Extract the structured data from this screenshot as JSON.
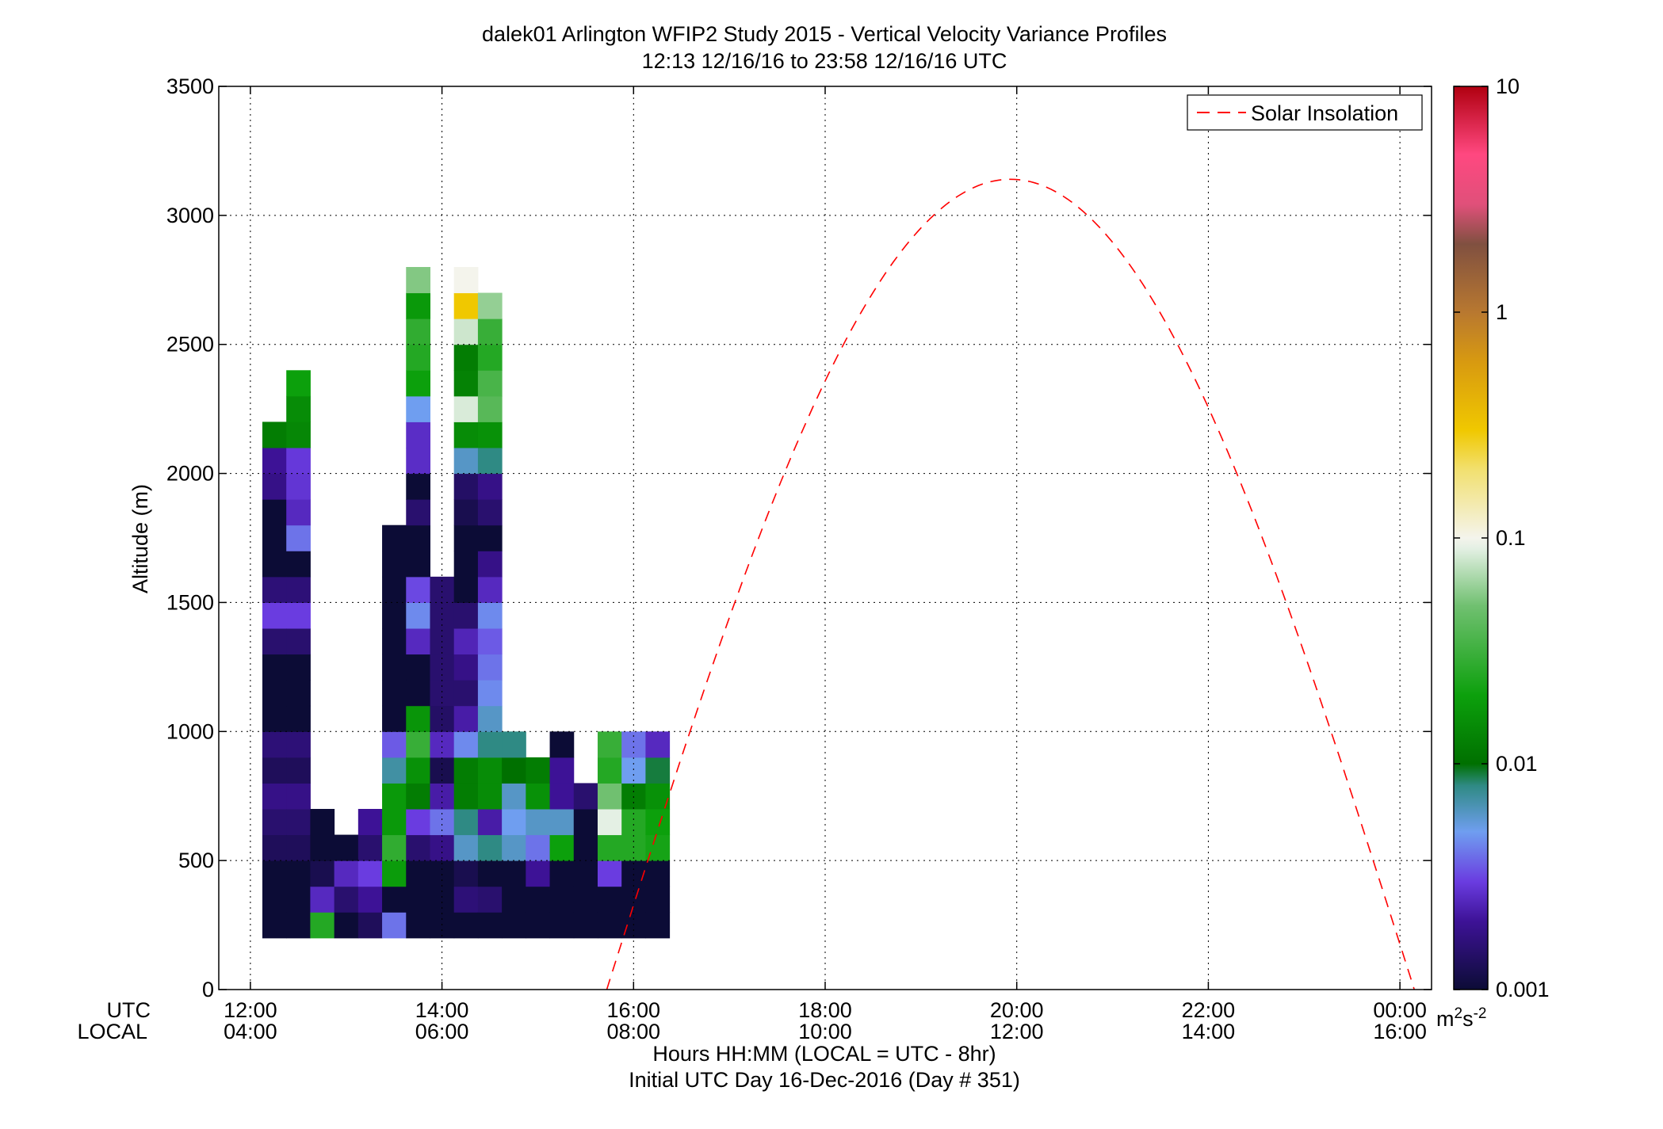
{
  "chart_data": {
    "type": "heatmap",
    "title": "dalek01 Arlington WFIP2 Study 2015 - Vertical Velocity Variance Profiles",
    "subtitle": "12:13 12/16/16 to 23:58 12/16/16  UTC",
    "ylabel": "Altitude (m)",
    "xlabel": "Hours HH:MM  (LOCAL = UTC - 8hr)",
    "xlabel2": "Initial UTC Day 16-Dec-2016 (Day # 351)",
    "x_row_labels": [
      "UTC",
      "LOCAL"
    ],
    "xlim": [
      11.67,
      24.33
    ],
    "ylim": [
      0,
      3500
    ],
    "grid": true,
    "xticks": [
      {
        "x": 12,
        "utc": "12:00",
        "local": "04:00"
      },
      {
        "x": 14,
        "utc": "14:00",
        "local": "06:00"
      },
      {
        "x": 16,
        "utc": "16:00",
        "local": "08:00"
      },
      {
        "x": 18,
        "utc": "18:00",
        "local": "10:00"
      },
      {
        "x": 20,
        "utc": "20:00",
        "local": "12:00"
      },
      {
        "x": 22,
        "utc": "22:00",
        "local": "14:00"
      },
      {
        "x": 24,
        "utc": "00:00",
        "local": "16:00"
      }
    ],
    "yticks": [
      0,
      500,
      1000,
      1500,
      2000,
      2500,
      3000,
      3500
    ],
    "colorbar": {
      "scale": "log",
      "range": [
        0.001,
        10
      ],
      "ticks": [
        "0.001",
        "0.01",
        "0.1",
        "1",
        "10"
      ],
      "unit": "m2s-2",
      "stops": [
        {
          "v": 0.001,
          "c": "#0c0c36"
        },
        {
          "v": 0.002,
          "c": "#3d1296"
        },
        {
          "v": 0.003,
          "c": "#6a3ce0"
        },
        {
          "v": 0.005,
          "c": "#6f9ef0"
        },
        {
          "v": 0.008,
          "c": "#2f8a84"
        },
        {
          "v": 0.01,
          "c": "#007000"
        },
        {
          "v": 0.02,
          "c": "#0ca00c"
        },
        {
          "v": 0.05,
          "c": "#70c070"
        },
        {
          "v": 0.09,
          "c": "#e4f0e4"
        },
        {
          "v": 0.1,
          "c": "#f4f4ec"
        },
        {
          "v": 0.2,
          "c": "#f2e070"
        },
        {
          "v": 0.3,
          "c": "#f0c800"
        },
        {
          "v": 0.6,
          "c": "#d89a10"
        },
        {
          "v": 1.0,
          "c": "#b87830"
        },
        {
          "v": 2.0,
          "c": "#805040"
        },
        {
          "v": 3.0,
          "c": "#e0507a"
        },
        {
          "v": 5.0,
          "c": "#ff4880"
        },
        {
          "v": 10.0,
          "c": "#b00010"
        }
      ]
    },
    "legend": {
      "position": "top-right",
      "entries": [
        {
          "name": "Solar Insolation",
          "color": "#ff0000",
          "style": "dashed"
        }
      ]
    },
    "solar_insolation": {
      "peak_time": 19.93,
      "peak_altitude": 3140,
      "zero_start": 15.72,
      "zero_end": 24.15
    },
    "bin_width_hours": 0.25,
    "bin_height_m": 100,
    "note_values": "variance values m^2 s^-2 per time bin from 200 m base",
    "columns": [
      {
        "t": 12.25,
        "base": 200,
        "values": [
          0.001,
          0.001,
          0.001,
          0.0013,
          0.0015,
          0.0018,
          0.0013,
          0.0016,
          0.001,
          0.001,
          0.001,
          0.0015,
          0.003,
          0.0016,
          0.001,
          0.001,
          0.001,
          0.0018,
          0.002,
          0.012
        ]
      },
      {
        "t": 12.5,
        "base": 200,
        "values": [
          0.001,
          0.001,
          0.001,
          0.0013,
          0.0015,
          0.0018,
          0.0013,
          0.0016,
          0.001,
          0.001,
          0.001,
          0.0015,
          0.003,
          0.0016,
          0.001,
          0.004,
          0.0025,
          0.0028,
          0.0029,
          0.014,
          0.015,
          0.02
        ]
      },
      {
        "t": 12.75,
        "base": 200,
        "values": [
          0.025,
          0.0025,
          0.0012,
          0.001,
          0.001
        ]
      },
      {
        "t": 13.0,
        "base": 200,
        "values": [
          0.001,
          0.0015,
          0.0025,
          0.001
        ]
      },
      {
        "t": 13.25,
        "base": 200,
        "values": [
          0.0013,
          0.002,
          0.003,
          0.0015,
          0.002
        ]
      },
      {
        "t": 13.5,
        "base": 200,
        "values": [
          0.004,
          0.001,
          0.019,
          0.028,
          0.018,
          0.018,
          0.007,
          0.0035,
          0.001,
          0.001,
          0.001,
          0.001,
          0.001,
          0.001,
          0.001,
          0.001
        ]
      },
      {
        "t": 13.75,
        "base": 200,
        "values": [
          0.001,
          0.001,
          0.001,
          0.0015,
          0.003,
          0.012,
          0.016,
          0.03,
          0.017,
          0.001,
          0.001,
          0.0025,
          0.0045,
          0.0032,
          0.001,
          0.001,
          0.0015,
          0.001,
          0.0026,
          0.0026,
          0.005,
          0.02,
          0.025,
          0.028,
          0.018,
          0.055
        ]
      },
      {
        "t": 14.0,
        "base": 200,
        "values": [
          0.001,
          0.001,
          0.001,
          0.0018,
          0.004,
          0.0022,
          0.0012,
          0.0025,
          0.0014,
          0.0015,
          0.0015,
          0.0015,
          0.0015,
          0.0015
        ]
      },
      {
        "t": 14.25,
        "base": 200,
        "values": [
          0.001,
          0.0016,
          0.0012,
          0.006,
          0.008,
          0.012,
          0.012,
          0.0045,
          0.0022,
          0.0015,
          0.0018,
          0.0024,
          0.0015,
          0.001,
          0.001,
          0.001,
          0.0012,
          0.0014,
          0.006,
          0.015,
          0.085,
          0.013,
          0.012,
          0.08,
          0.3,
          0.1
        ]
      },
      {
        "t": 14.5,
        "base": 200,
        "values": [
          0.001,
          0.0015,
          0.001,
          0.008,
          0.0022,
          0.015,
          0.015,
          0.008,
          0.006,
          0.0045,
          0.004,
          0.0035,
          0.0045,
          0.0025,
          0.0018,
          0.001,
          0.0015,
          0.0018,
          0.008,
          0.016,
          0.04,
          0.035,
          0.025,
          0.03,
          0.06
        ]
      },
      {
        "t": 14.75,
        "base": 200,
        "values": [
          0.001,
          0.001,
          0.001,
          0.006,
          0.005,
          0.006,
          0.01,
          0.008
        ]
      },
      {
        "t": 15.0,
        "base": 200,
        "values": [
          0.001,
          0.001,
          0.002,
          0.004,
          0.006,
          0.016,
          0.012
        ]
      },
      {
        "t": 15.25,
        "base": 200,
        "values": [
          0.001,
          0.001,
          0.001,
          0.02,
          0.006,
          0.002,
          0.002,
          0.001
        ]
      },
      {
        "t": 15.5,
        "base": 200,
        "values": [
          0.001,
          0.001,
          0.001,
          0.001,
          0.001,
          0.0015
        ]
      },
      {
        "t": 15.75,
        "base": 200,
        "values": [
          0.001,
          0.001,
          0.003,
          0.025,
          0.09,
          0.05,
          0.025,
          0.03
        ]
      },
      {
        "t": 16.0,
        "base": 200,
        "values": [
          0.001,
          0.001,
          0.001,
          0.025,
          0.025,
          0.012,
          0.005,
          0.004
        ]
      },
      {
        "t": 16.25,
        "base": 200,
        "values": [
          0.001,
          0.001,
          0.001,
          0.022,
          0.02,
          0.016,
          0.009,
          0.0025
        ]
      }
    ]
  }
}
